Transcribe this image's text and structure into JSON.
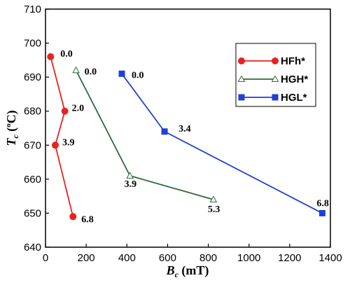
{
  "chart_data": {
    "type": "line",
    "xlabel": {
      "main": "B",
      "sub": "c",
      "unit": " (mT)"
    },
    "ylabel": {
      "main": "T",
      "sub": "c",
      "unit_open": " (",
      "unit_sup": "o",
      "unit_close": "C)"
    },
    "xlim": [
      0,
      1400
    ],
    "ylim": [
      640,
      710
    ],
    "x_ticks": [
      0,
      200,
      400,
      600,
      800,
      1000,
      1200,
      1400
    ],
    "y_ticks": [
      640,
      650,
      660,
      670,
      680,
      690,
      700,
      710
    ],
    "grid": false,
    "legend_position": "top-right",
    "series": [
      {
        "name": "HFh*",
        "color": "#e8231e",
        "marker": "circle",
        "points": [
          {
            "x": 25,
            "y": 696,
            "label": "0.0"
          },
          {
            "x": 95,
            "y": 680,
            "label": "2.0"
          },
          {
            "x": 48,
            "y": 670,
            "label": "3.9"
          },
          {
            "x": 135,
            "y": 649,
            "label": "6.8"
          }
        ]
      },
      {
        "name": "HGH*",
        "color": "#2e6b3a",
        "marker": "triangle-open",
        "points": [
          {
            "x": 150,
            "y": 692,
            "label": "0.0"
          },
          {
            "x": 415,
            "y": 661,
            "label": "3.9"
          },
          {
            "x": 825,
            "y": 654,
            "label": "5.3"
          }
        ]
      },
      {
        "name": "HGL*",
        "color": "#1f3fd6",
        "marker": "square",
        "points": [
          {
            "x": 375,
            "y": 691,
            "label": "0.0"
          },
          {
            "x": 585,
            "y": 674,
            "label": "3.4"
          },
          {
            "x": 1360,
            "y": 650,
            "label": "6.8"
          }
        ]
      }
    ]
  }
}
